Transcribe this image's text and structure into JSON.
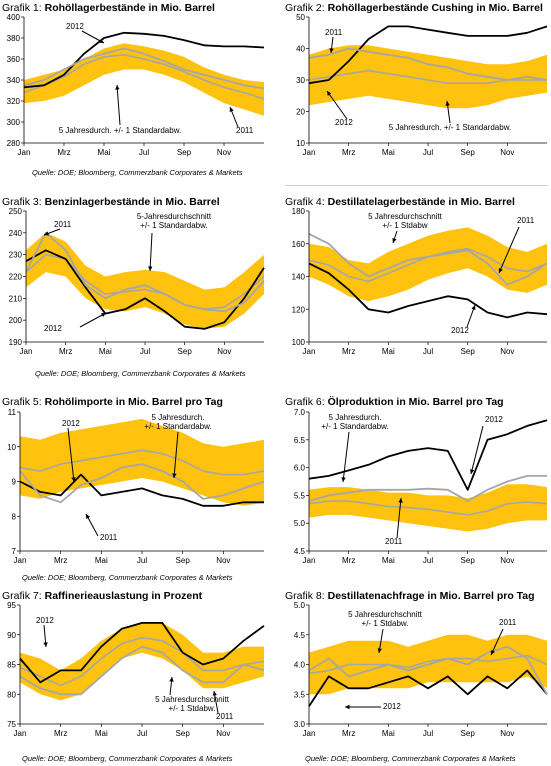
{
  "colors": {
    "band": "#FFC20E",
    "avg": "#A6A6A6",
    "line2012": "#000000",
    "line2011": "#A6A6A6"
  },
  "charts": [
    {
      "id": "g1",
      "prefix": "Grafik 1:",
      "name": "Rohöllagerbestände in Mio. Barrel",
      "source": "Quelle: DOE; Bloomberg, Commerzbank Corporates & Markets",
      "ann": {
        "a": "2012",
        "b": "5 Jahresdurch. +/- 1 Standardabw.",
        "c": "2011"
      }
    },
    {
      "id": "g2",
      "prefix": "Grafik 2:",
      "name": "Rohöllagerbestände Cushing in Mio. Barrel",
      "source": "",
      "ann": {
        "a": "2011",
        "b": "2012",
        "c": "5 Jahresdurch. +/- 1 Standardabw."
      }
    },
    {
      "id": "g3",
      "prefix": "Grafik 3:",
      "name": "Benzinlagerbestände in Mio. Barrel",
      "source": "",
      "ann": {
        "a": "2011",
        "b": "5-Jahresdurchschnitt",
        "c": "+/- 1 Standardabw.",
        "d": "2012"
      }
    },
    {
      "id": "g4",
      "prefix": "Grafik 4:",
      "name": "Destillatelagerbestände in Mio. Barrel",
      "source": "Quelle: DOE; Bloomberg, Commerzbank Corporates & Markets",
      "ann": {
        "a": "5 Jahresdurchschnitt",
        "b": "+/- 1 Stdabw",
        "c": "2011",
        "d": "2012"
      }
    },
    {
      "id": "g5",
      "prefix": "Grafik 5:",
      "name": "Rohölimporte in Mio. Barrel pro Tag",
      "source": "Quelle: DOE; Bloomberg, Commerzbank Corporates & Markets",
      "ann": {
        "a": "2012",
        "b": "5 Jahresdurch.",
        "c": "+/- 1 Standardabw.",
        "d": "2011"
      }
    },
    {
      "id": "g6",
      "prefix": "Grafik 6:",
      "name": "Ölproduktion in Mio. Barrel pro Tag",
      "source": "",
      "ann": {
        "a": "5 Jahresdurch.",
        "b": "+/- 1 Standardabw.",
        "c": "2012",
        "d": "2011"
      }
    },
    {
      "id": "g7",
      "prefix": "Grafik 7:",
      "name": "Raffinerieauslastung in Prozent",
      "source": "Quelle: DOE; Bloomberg, Commerzbank Corporates & Markets",
      "ann": {
        "a": "2012",
        "b": "5 Jahresdurchschnitt",
        "c": "+/- 1 Stdabw.",
        "d": "2011"
      }
    },
    {
      "id": "g8",
      "prefix": "Grafik 8:",
      "name": "Destillatenachfrage in Mio. Barrel pro Tag",
      "source": "Quelle: DOE; Bloomberg, Commerzbank Corporates & Markets",
      "ann": {
        "a": "5 Jahresdurchschnitt",
        "b": "+/- 1 Stdabw.",
        "c": "2011",
        "d": "2012"
      }
    }
  ],
  "chart_data": [
    {
      "type": "line",
      "title": "Grafik 1: Rohöllagerbestände in Mio. Barrel",
      "xticks": [
        "Jan",
        "Mrz",
        "Mai",
        "Jul",
        "Sep",
        "Nov"
      ],
      "ylim": [
        280,
        400
      ],
      "yticks": [
        280,
        300,
        320,
        340,
        360,
        380,
        400
      ],
      "series": [
        {
          "name": "5 Jahresdurch. +/- 1 Standardabw. (Band oben)",
          "values": [
            340,
            345,
            350,
            360,
            370,
            375,
            372,
            368,
            362,
            352,
            345,
            340,
            338
          ]
        },
        {
          "name": "5 Jahresdurch. +/- 1 Standardabw. (Band unten)",
          "values": [
            318,
            320,
            325,
            335,
            345,
            350,
            350,
            345,
            338,
            328,
            318,
            312,
            306
          ]
        },
        {
          "name": "5 Jahresdurch.",
          "values": [
            328,
            335,
            343,
            355,
            362,
            364,
            360,
            355,
            348,
            340,
            333,
            328,
            322
          ]
        },
        {
          "name": "2012",
          "values": [
            333,
            335,
            345,
            365,
            380,
            385,
            384,
            382,
            378,
            373,
            372,
            372,
            371
          ]
        },
        {
          "name": "2011",
          "values": [
            335,
            340,
            350,
            360,
            365,
            370,
            365,
            358,
            350,
            345,
            340,
            335,
            332
          ]
        }
      ]
    },
    {
      "type": "line",
      "title": "Grafik 2: Rohöllagerbestände Cushing in Mio. Barrel",
      "xticks": [
        "Jan",
        "Mrz",
        "Mai",
        "Jul",
        "Sep",
        "Nov"
      ],
      "ylim": [
        10,
        50
      ],
      "yticks": [
        10,
        20,
        30,
        40,
        50
      ],
      "series": [
        {
          "name": "5 Jahresdurch. +/- 1 Standardabw. (Band oben)",
          "values": [
            38,
            40,
            41,
            41,
            40,
            39,
            38,
            37,
            36,
            35,
            35,
            36,
            38
          ]
        },
        {
          "name": "5 Jahresdurch. +/- 1 Standardabw. (Band unten)",
          "values": [
            22,
            23,
            24,
            25,
            24,
            23,
            22,
            21,
            21,
            22,
            24,
            25,
            26
          ]
        },
        {
          "name": "5 Jahresdurch.",
          "values": [
            30,
            31,
            32,
            33,
            32,
            31,
            30,
            29,
            29,
            29,
            30,
            30,
            30
          ]
        },
        {
          "name": "2012",
          "values": [
            29,
            30,
            36,
            43,
            47,
            47,
            46,
            45,
            44,
            44,
            44,
            45,
            47
          ]
        },
        {
          "name": "2011",
          "values": [
            37,
            38,
            40,
            39,
            38,
            37,
            35,
            34,
            32,
            31,
            30,
            31,
            30
          ]
        }
      ]
    },
    {
      "type": "line",
      "title": "Grafik 3: Benzinlagerbestände in Mio. Barrel",
      "xticks": [
        "Jan",
        "Mrz",
        "Mai",
        "Jul",
        "Sep",
        "Nov"
      ],
      "ylim": [
        190,
        250
      ],
      "yticks": [
        190,
        200,
        210,
        220,
        230,
        240,
        250
      ],
      "series": [
        {
          "name": "5-Jahresdurchschnitt +/- 1 Standardabw. (Band oben)",
          "values": [
            232,
            240,
            236,
            225,
            220,
            222,
            223,
            222,
            218,
            214,
            215,
            222,
            230
          ]
        },
        {
          "name": "5-Jahresdurchschnitt +/- 1 Standardabw. (Band unten)",
          "values": [
            215,
            222,
            220,
            210,
            205,
            204,
            206,
            203,
            198,
            196,
            197,
            203,
            212
          ]
        },
        {
          "name": "5-Jahresdurchschnitt",
          "values": [
            222,
            230,
            228,
            218,
            212,
            213,
            214,
            212,
            207,
            205,
            206,
            212,
            220
          ]
        },
        {
          "name": "2012",
          "values": [
            227,
            232,
            228,
            215,
            203,
            205,
            210,
            204,
            197,
            196,
            199,
            210,
            224
          ]
        },
        {
          "name": "2011",
          "values": [
            222,
            240,
            232,
            216,
            210,
            214,
            216,
            212,
            207,
            205,
            204,
            208,
            218
          ]
        }
      ]
    },
    {
      "type": "line",
      "title": "Grafik 4: Destillatelagerbestände in Mio. Barrel",
      "xticks": [
        "Jan",
        "Mrz",
        "Mai",
        "Jul",
        "Sep",
        "Nov"
      ],
      "ylim": [
        100,
        180
      ],
      "yticks": [
        100,
        120,
        140,
        160,
        180
      ],
      "series": [
        {
          "name": "5 Jahresdurchschnitt +/- 1 Stdabw (Band oben)",
          "values": [
            160,
            158,
            150,
            148,
            155,
            160,
            165,
            168,
            170,
            165,
            158,
            155,
            160
          ]
        },
        {
          "name": "5 Jahresdurchschnitt +/- 1 Stdabw (Band unten)",
          "values": [
            140,
            135,
            128,
            125,
            128,
            132,
            138,
            142,
            145,
            140,
            132,
            130,
            135
          ]
        },
        {
          "name": "5 Jahresdurchschnitt",
          "values": [
            150,
            147,
            140,
            137,
            142,
            147,
            152,
            155,
            157,
            152,
            145,
            143,
            148
          ]
        },
        {
          "name": "2012",
          "values": [
            148,
            142,
            132,
            120,
            118,
            122,
            125,
            128,
            126,
            118,
            115,
            118,
            117
          ]
        },
        {
          "name": "2011",
          "values": [
            166,
            160,
            148,
            140,
            145,
            150,
            152,
            154,
            156,
            148,
            135,
            140,
            148
          ]
        }
      ]
    },
    {
      "type": "line",
      "title": "Grafik 5: Rohölimporte in Mio. Barrel pro Tag",
      "xticks": [
        "Jan",
        "Mrz",
        "Mai",
        "Jul",
        "Sep",
        "Nov"
      ],
      "ylim": [
        7,
        11
      ],
      "yticks": [
        7,
        8,
        9,
        10,
        11
      ],
      "series": [
        {
          "name": "5 Jahresdurch. +/- 1 Standardabw. (Band oben)",
          "values": [
            10.3,
            10.2,
            10.4,
            10.5,
            10.6,
            10.7,
            10.8,
            10.6,
            10.4,
            10.1,
            10.0,
            10.1,
            10.2
          ]
        },
        {
          "name": "5 Jahresdurch. +/- 1 Standardabw. (Band unten)",
          "values": [
            8.6,
            8.5,
            8.7,
            8.8,
            8.9,
            9.0,
            9.1,
            9.0,
            8.8,
            8.6,
            8.4,
            8.3,
            8.4
          ]
        },
        {
          "name": "5 Jahresdurch.",
          "values": [
            9.4,
            9.3,
            9.5,
            9.6,
            9.7,
            9.8,
            9.9,
            9.8,
            9.6,
            9.3,
            9.2,
            9.2,
            9.3
          ]
        },
        {
          "name": "2012",
          "values": [
            9.0,
            8.7,
            8.6,
            9.2,
            8.6,
            8.7,
            8.8,
            8.6,
            8.5,
            8.3,
            8.3,
            8.4,
            8.4
          ]
        },
        {
          "name": "2011",
          "values": [
            9.3,
            8.6,
            8.4,
            8.9,
            9.1,
            9.4,
            9.5,
            9.3,
            9.0,
            8.5,
            8.6,
            8.8,
            9.0
          ]
        }
      ]
    },
    {
      "type": "line",
      "title": "Grafik 6: Ölproduktion in Mio. Barrel pro Tag",
      "xticks": [
        "Jan",
        "Mrz",
        "Mai",
        "Jul",
        "Sep",
        "Nov"
      ],
      "ylim": [
        4.5,
        7.0
      ],
      "yticks": [
        4.5,
        5.0,
        5.5,
        6.0,
        6.5,
        7.0
      ],
      "series": [
        {
          "name": "5 Jahresdurch. +/- 1 Standardabw. (Band oben)",
          "values": [
            5.6,
            5.65,
            5.65,
            5.6,
            5.55,
            5.55,
            5.5,
            5.5,
            5.45,
            5.55,
            5.7,
            5.7,
            5.65
          ]
        },
        {
          "name": "5 Jahresdurch. +/- 1 Standardabw. (Band unten)",
          "values": [
            5.1,
            5.15,
            5.15,
            5.1,
            5.05,
            5.0,
            4.95,
            4.9,
            4.85,
            4.9,
            5.0,
            5.05,
            5.05
          ]
        },
        {
          "name": "5 Jahresdurch.",
          "values": [
            5.35,
            5.4,
            5.4,
            5.35,
            5.3,
            5.28,
            5.25,
            5.2,
            5.15,
            5.22,
            5.35,
            5.38,
            5.35
          ]
        },
        {
          "name": "2012",
          "values": [
            5.8,
            5.85,
            5.95,
            6.05,
            6.2,
            6.3,
            6.35,
            6.3,
            5.6,
            6.5,
            6.6,
            6.75,
            6.85
          ]
        },
        {
          "name": "2011",
          "values": [
            5.4,
            5.5,
            5.55,
            5.6,
            5.6,
            5.6,
            5.62,
            5.6,
            5.4,
            5.6,
            5.75,
            5.85,
            5.85
          ]
        }
      ]
    },
    {
      "type": "line",
      "title": "Grafik 7: Raffinerieauslastung in Prozent",
      "xticks": [
        "Jan",
        "Mrz",
        "Mai",
        "Jul",
        "Sep",
        "Nov"
      ],
      "ylim": [
        75,
        95
      ],
      "yticks": [
        75,
        80,
        85,
        90,
        95
      ],
      "series": [
        {
          "name": "5 Jahresdurchschnitt +/- 1 Stdabw. (Band oben)",
          "values": [
            87,
            86,
            84,
            86,
            89,
            91,
            92,
            92,
            90,
            87,
            87,
            88,
            88
          ]
        },
        {
          "name": "5 Jahresdurchschnitt +/- 1 Stdabw. (Band unten)",
          "values": [
            82,
            80,
            79,
            80,
            83,
            86,
            87,
            86,
            84,
            81,
            81,
            82,
            83
          ]
        },
        {
          "name": "5 Jahresdurchschnitt",
          "values": [
            84.5,
            83,
            81.5,
            83,
            86,
            88.5,
            89.5,
            89,
            87,
            84,
            84,
            85,
            85.5
          ]
        },
        {
          "name": "2012",
          "values": [
            86,
            82,
            84,
            84,
            88,
            91,
            92,
            92,
            87,
            85,
            86,
            89,
            91.5
          ]
        },
        {
          "name": "2011",
          "values": [
            83,
            81,
            80,
            80,
            83,
            86,
            88,
            87,
            84,
            82,
            82,
            85,
            84
          ]
        }
      ]
    },
    {
      "type": "line",
      "title": "Grafik 8: Destillatenachfrage in Mio. Barrel pro Tag",
      "xticks": [
        "Jan",
        "Mrz",
        "Mai",
        "Jul",
        "Sep",
        "Nov"
      ],
      "ylim": [
        3.0,
        5.0
      ],
      "yticks": [
        3.0,
        3.5,
        4.0,
        4.5,
        5.0
      ],
      "series": [
        {
          "name": "5 Jahresdurchschnitt +/- 1 Stdabw. (Band oben)",
          "values": [
            4.2,
            4.3,
            4.4,
            4.4,
            4.4,
            4.3,
            4.4,
            4.5,
            4.5,
            4.4,
            4.5,
            4.5,
            4.4
          ]
        },
        {
          "name": "5 Jahresdurchschnitt +/- 1 Stdabw. (Band unten)",
          "values": [
            3.5,
            3.5,
            3.6,
            3.6,
            3.6,
            3.6,
            3.7,
            3.7,
            3.7,
            3.7,
            3.7,
            3.8,
            3.6
          ]
        },
        {
          "name": "5 Jahresdurchschnitt",
          "values": [
            3.85,
            3.9,
            4.0,
            4.0,
            4.0,
            3.95,
            4.05,
            4.1,
            4.1,
            4.05,
            4.1,
            4.15,
            4.0
          ]
        },
        {
          "name": "2012",
          "values": [
            3.3,
            3.8,
            3.6,
            3.6,
            3.7,
            3.8,
            3.6,
            3.8,
            3.5,
            3.8,
            3.6,
            3.9,
            3.5
          ]
        },
        {
          "name": "2011",
          "values": [
            3.9,
            4.1,
            3.8,
            3.9,
            4.0,
            3.9,
            4.0,
            4.1,
            4.0,
            4.2,
            4.3,
            4.1,
            3.5
          ]
        }
      ]
    }
  ]
}
